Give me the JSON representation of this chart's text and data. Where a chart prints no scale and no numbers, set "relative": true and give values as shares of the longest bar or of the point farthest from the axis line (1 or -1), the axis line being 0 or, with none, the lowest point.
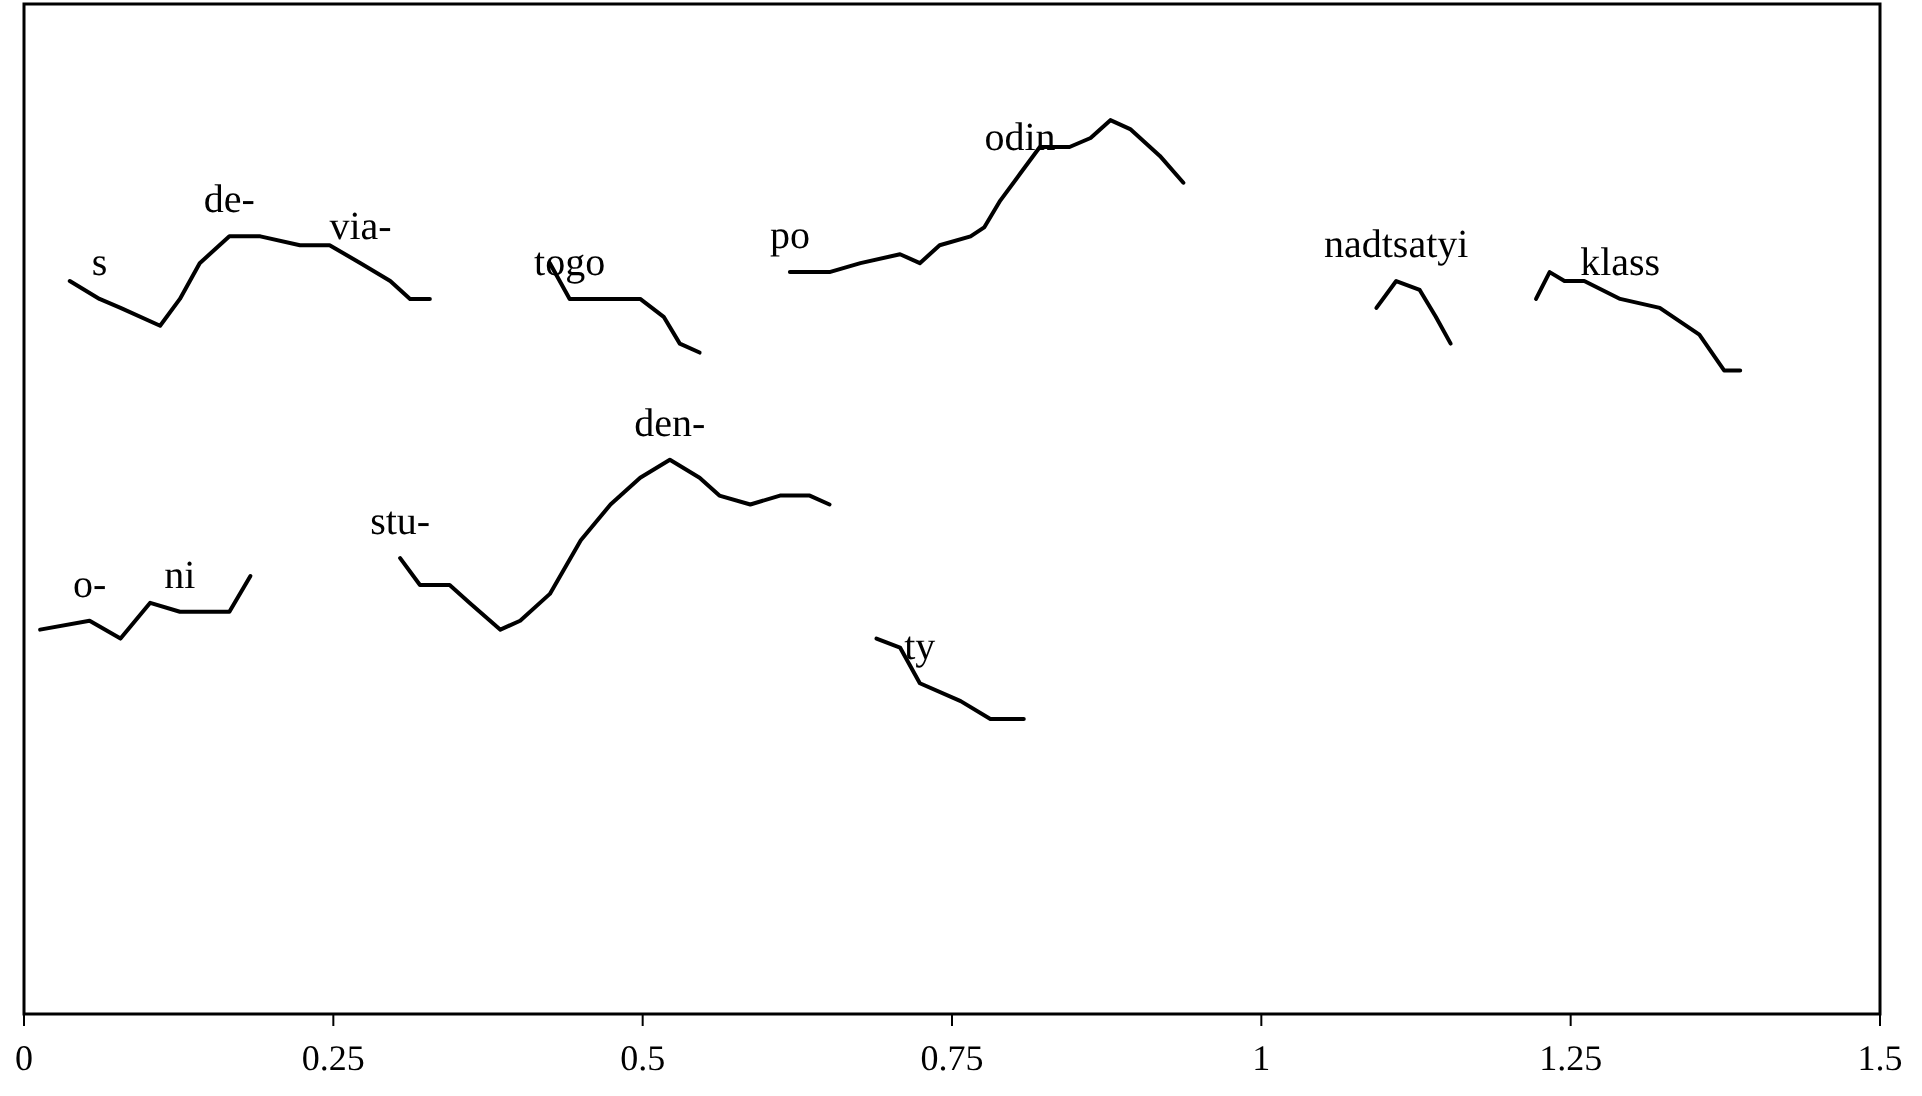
{
  "chart_data": {
    "type": "line",
    "relative": true,
    "xlim": [
      0,
      1.5
    ],
    "xticks": [
      0,
      0.25,
      0.5,
      0.75,
      1,
      1.25,
      1.5
    ],
    "tick_labels": "x",
    "grid": false,
    "marker": "none",
    "line_style": "solid",
    "series": [
      {
        "color": "#000000",
        "x": [
          0.037,
          0.061,
          0.078,
          0.11,
          0.126,
          0.142,
          0.166,
          0.191,
          0.223,
          0.247,
          0.272,
          0.296,
          0.312,
          0.328
        ],
        "values": [
          0.82,
          0.8,
          0.79,
          0.77,
          0.8,
          0.84,
          0.87,
          0.87,
          0.86,
          0.86,
          0.84,
          0.82,
          0.8,
          0.8
        ]
      },
      {
        "color": "#000000",
        "x": [
          0.425,
          0.441,
          0.466,
          0.498,
          0.517,
          0.53,
          0.546
        ],
        "values": [
          0.84,
          0.8,
          0.8,
          0.8,
          0.78,
          0.75,
          0.74
        ]
      },
      {
        "color": "#000000",
        "x": [
          0.619,
          0.651,
          0.676,
          0.708,
          0.724,
          0.74,
          0.765,
          0.776,
          0.789,
          0.805,
          0.821,
          0.845,
          0.862,
          0.878,
          0.894,
          0.918,
          0.937
        ],
        "values": [
          0.83,
          0.83,
          0.84,
          0.85,
          0.84,
          0.86,
          0.87,
          0.88,
          0.91,
          0.94,
          0.97,
          0.97,
          0.98,
          1.0,
          0.99,
          0.96,
          0.93
        ]
      },
      {
        "color": "#000000",
        "x": [
          1.093,
          1.109,
          1.128,
          1.141,
          1.153
        ],
        "values": [
          0.79,
          0.82,
          0.81,
          0.78,
          0.75
        ]
      },
      {
        "color": "#000000",
        "x": [
          1.222,
          1.233,
          1.245,
          1.261,
          1.29,
          1.322,
          1.354,
          1.374,
          1.387
        ],
        "values": [
          0.8,
          0.83,
          0.82,
          0.82,
          0.8,
          0.79,
          0.76,
          0.72,
          0.72
        ]
      },
      {
        "color": "#000000",
        "x": [
          0.013,
          0.053,
          0.078,
          0.102,
          0.126,
          0.166,
          0.183
        ],
        "values": [
          0.43,
          0.44,
          0.42,
          0.46,
          0.45,
          0.45,
          0.49
        ]
      },
      {
        "color": "#000000",
        "x": [
          0.304,
          0.32,
          0.344,
          0.36,
          0.385,
          0.401,
          0.425,
          0.45,
          0.474,
          0.498,
          0.522,
          0.546,
          0.562,
          0.587,
          0.611,
          0.635,
          0.651
        ],
        "values": [
          0.51,
          0.48,
          0.48,
          0.46,
          0.43,
          0.44,
          0.47,
          0.53,
          0.57,
          0.6,
          0.62,
          0.6,
          0.58,
          0.57,
          0.58,
          0.58,
          0.57
        ]
      },
      {
        "color": "#000000",
        "x": [
          0.689,
          0.708,
          0.724,
          0.757,
          0.781,
          0.808
        ],
        "values": [
          0.42,
          0.41,
          0.37,
          0.35,
          0.33,
          0.33
        ]
      }
    ],
    "annotations": [
      {
        "text": "s",
        "x": 0.061,
        "y": 0.8
      },
      {
        "text": "de-",
        "x": 0.166,
        "y": 0.87
      },
      {
        "text": "via-",
        "x": 0.272,
        "y": 0.84
      },
      {
        "text": "togo",
        "x": 0.441,
        "y": 0.8
      },
      {
        "text": "po",
        "x": 0.619,
        "y": 0.83
      },
      {
        "text": "odin",
        "x": 0.805,
        "y": 0.94
      },
      {
        "text": "nadtsatyi",
        "x": 1.109,
        "y": 0.82
      },
      {
        "text": "klass",
        "x": 1.29,
        "y": 0.8
      },
      {
        "text": "o-",
        "x": 0.053,
        "y": 0.44
      },
      {
        "text": "ni",
        "x": 0.126,
        "y": 0.45
      },
      {
        "text": "stu-",
        "x": 0.304,
        "y": 0.51
      },
      {
        "text": "den-",
        "x": 0.522,
        "y": 0.62
      },
      {
        "text": "ty",
        "x": 0.724,
        "y": 0.37
      }
    ]
  }
}
